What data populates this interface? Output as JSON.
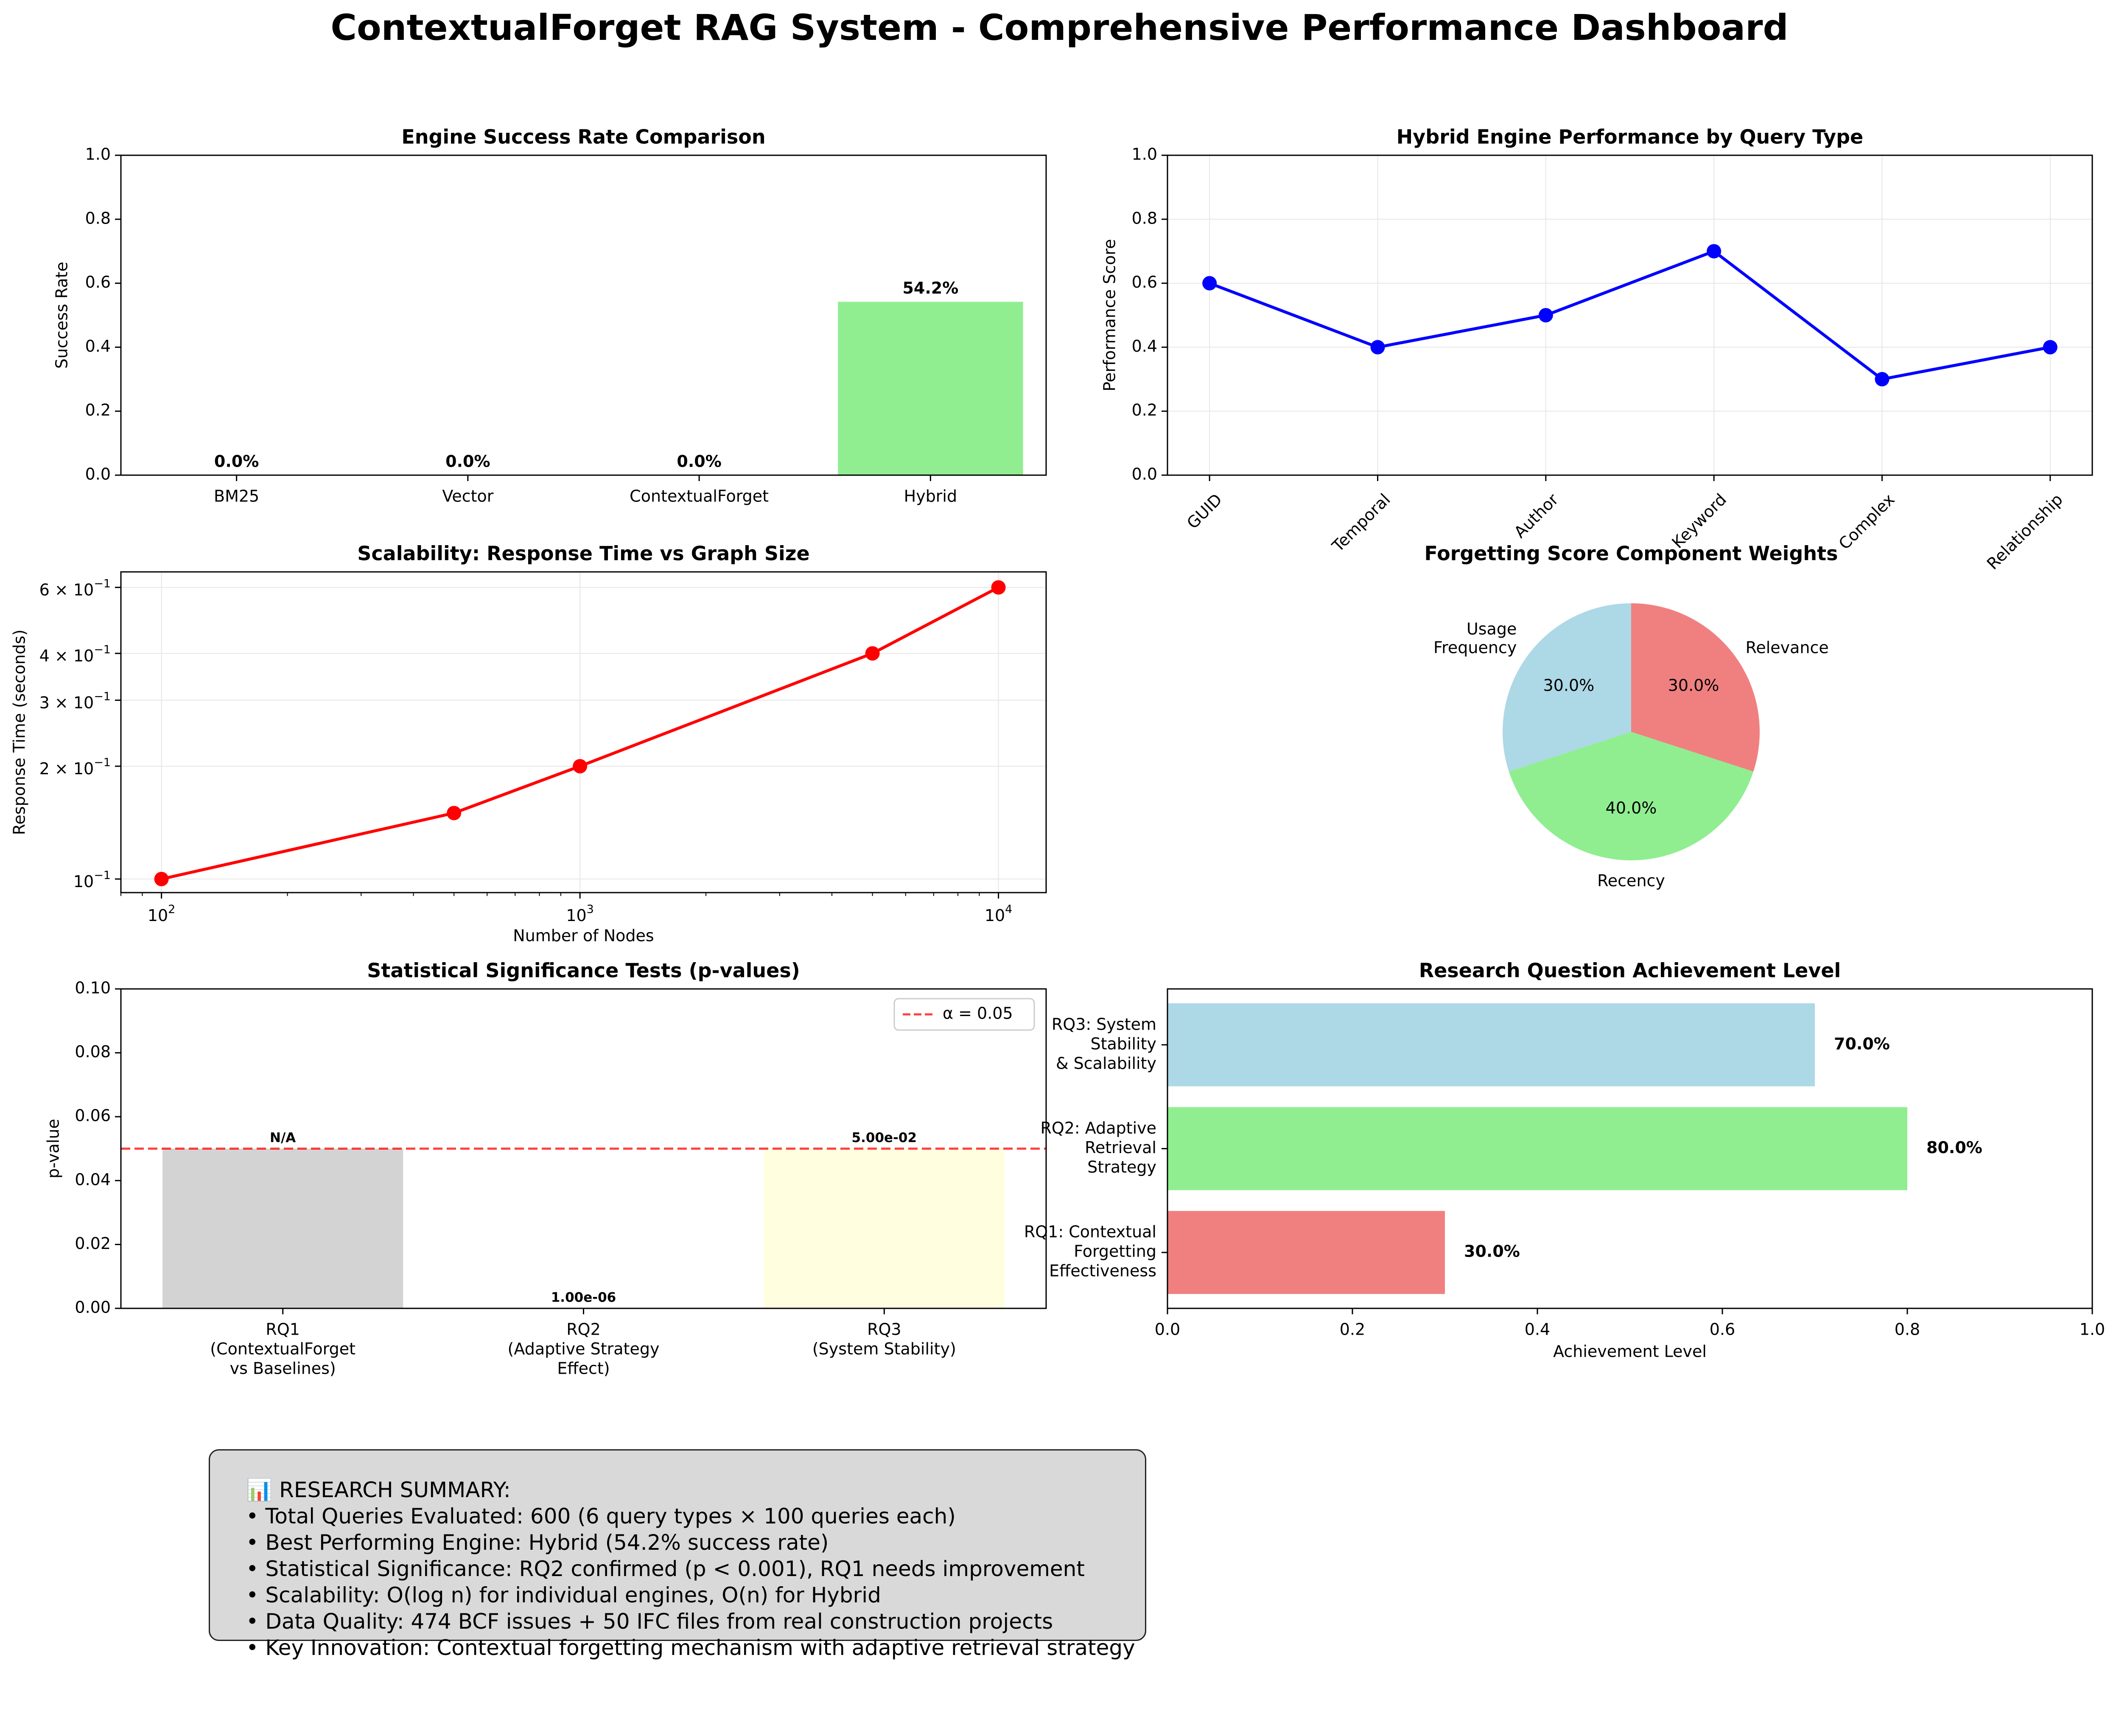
{
  "title": "ContextualForget RAG System - Comprehensive Performance Dashboard",
  "chart_data": [
    {
      "id": "engine",
      "type": "bar",
      "title": "Engine Success Rate Comparison",
      "xlabel": "",
      "ylabel": "Success Rate",
      "categories": [
        "BM25",
        "Vector",
        "ContextualForget",
        "Hybrid"
      ],
      "values": [
        0.0,
        0.0,
        0.0,
        0.542
      ],
      "value_labels": [
        "0.0%",
        "0.0%",
        "0.0%",
        "54.2%"
      ],
      "ylim": [
        0,
        1.0
      ],
      "yticks": [
        "0.0",
        "0.2",
        "0.4",
        "0.6",
        "0.8",
        "1.0"
      ],
      "colors": [
        "#add8e6",
        "#f08080",
        "#ffd700",
        "#90ee90"
      ],
      "grid": false
    },
    {
      "id": "querytype",
      "type": "line",
      "title": "Hybrid Engine Performance by Query Type",
      "xlabel": "",
      "ylabel": "Performance Score",
      "categories": [
        "GUID",
        "Temporal",
        "Author",
        "Keyword",
        "Complex",
        "Relationship"
      ],
      "values": [
        0.6,
        0.4,
        0.5,
        0.7,
        0.3,
        0.4
      ],
      "ylim": [
        0,
        1.0
      ],
      "yticks": [
        "0.0",
        "0.2",
        "0.4",
        "0.6",
        "0.8",
        "1.0"
      ],
      "color": "#0000ff",
      "grid": true
    },
    {
      "id": "scalability",
      "type": "line",
      "title": "Scalability: Response Time vs Graph Size",
      "xlabel": "Number of Nodes",
      "ylabel": "Response Time (seconds)",
      "x": [
        100,
        500,
        1000,
        5000,
        10000
      ],
      "values": [
        0.1,
        0.15,
        0.2,
        0.4,
        0.6
      ],
      "xscale": "log",
      "yscale": "log",
      "xlim": [
        80,
        13000
      ],
      "ylim": [
        0.092,
        0.66
      ],
      "xticks": [
        {
          "v": 100,
          "b": "10",
          "e": "2"
        },
        {
          "v": 1000,
          "b": "10",
          "e": "3"
        },
        {
          "v": 10000,
          "b": "10",
          "e": "4"
        }
      ],
      "yticks": [
        {
          "v": 0.1,
          "m": "",
          "b": "10",
          "e": "−1"
        },
        {
          "v": 0.2,
          "m": "2 × ",
          "b": "10",
          "e": "−1"
        },
        {
          "v": 0.3,
          "m": "3 × ",
          "b": "10",
          "e": "−1"
        },
        {
          "v": 0.4,
          "m": "4 × ",
          "b": "10",
          "e": "−1"
        },
        {
          "v": 0.6,
          "m": "6 × ",
          "b": "10",
          "e": "−1"
        }
      ],
      "color": "#ff0000",
      "grid": true
    },
    {
      "id": "weights",
      "type": "pie",
      "title": "Forgetting Score Component Weights",
      "labels": [
        "Usage\nFrequency",
        "Recency",
        "Relevance"
      ],
      "values": [
        30.0,
        40.0,
        30.0
      ],
      "pct_labels": [
        "30.0%",
        "40.0%",
        "30.0%"
      ],
      "colors": [
        "#add8e6",
        "#90ee90",
        "#f08080"
      ]
    },
    {
      "id": "pvalues",
      "type": "bar",
      "title": "Statistical Significance Tests (p-values)",
      "xlabel": "",
      "ylabel": "p-value",
      "categories": [
        "RQ1\n(ContextualForget\nvs Baselines)",
        "RQ2\n(Adaptive Strategy\nEffect)",
        "RQ3\n(System Stability)"
      ],
      "values": [
        0.05,
        1e-06,
        0.05
      ],
      "value_labels": [
        "N/A",
        "1.00e-06",
        "5.00e-02"
      ],
      "ylim": [
        0,
        0.1
      ],
      "yticks": [
        "0.00",
        "0.02",
        "0.04",
        "0.06",
        "0.08",
        "0.10"
      ],
      "threshold": 0.05,
      "legend": "α = 0.05",
      "legend_position": "upper right",
      "colors": [
        "#d3d3d3",
        "#ffffff",
        "#ffffe0"
      ],
      "grid": false
    },
    {
      "id": "rq",
      "type": "bar",
      "orientation": "horizontal",
      "title": "Research Question Achievement Level",
      "xlabel": "Achievement Level",
      "ylabel": "",
      "categories": [
        "RQ1: Contextual\nForgetting\nEffectiveness",
        "RQ2: Adaptive\nRetrieval\nStrategy",
        "RQ3: System\nStability\n& Scalability"
      ],
      "values": [
        0.3,
        0.8,
        0.7
      ],
      "value_labels": [
        "30.0%",
        "80.0%",
        "70.0%"
      ],
      "xlim": [
        0,
        1.0
      ],
      "xticks": [
        "0.0",
        "0.2",
        "0.4",
        "0.6",
        "0.8",
        "1.0"
      ],
      "colors": [
        "#f08080",
        "#90ee90",
        "#add8e6"
      ],
      "grid": false
    }
  ],
  "summary": {
    "heading": "📊 RESEARCH SUMMARY:",
    "lines": [
      "• Total Queries Evaluated: 600 (6 query types × 100 queries each)",
      "• Best Performing Engine: Hybrid (54.2% success rate)",
      "• Statistical Significance: RQ2 confirmed (p < 0.001), RQ1 needs improvement",
      "• Scalability: O(log n) for individual engines, O(n) for Hybrid",
      "• Data Quality: 474 BCF issues + 50 IFC files from real construction projects",
      "• Key Innovation: Contextual forgetting mechanism with adaptive retrieval strategy"
    ]
  }
}
